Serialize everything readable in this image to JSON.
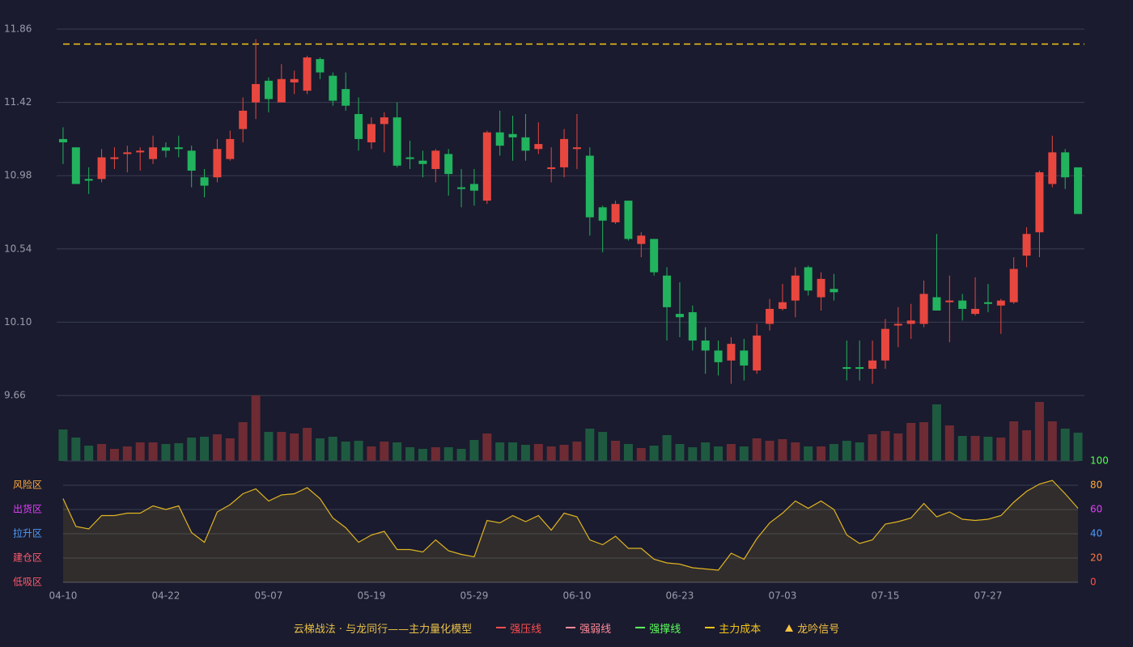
{
  "chart_data": {
    "type": "candlestick",
    "ylim": [
      9.66,
      11.86
    ],
    "yticks": [
      9.66,
      {
        "value": 10.1,
        "label": "10.10"
      },
      10.54,
      10.98,
      11.42,
      11.86
    ],
    "grid": true,
    "categories": [
      "04-10",
      null,
      null,
      null,
      null,
      null,
      null,
      null,
      "04-22",
      null,
      null,
      null,
      null,
      null,
      null,
      null,
      "05-07",
      null,
      null,
      null,
      null,
      null,
      null,
      null,
      "05-19",
      null,
      null,
      null,
      null,
      null,
      null,
      null,
      "05-29",
      null,
      null,
      null,
      null,
      null,
      null,
      null,
      "06-10",
      null,
      null,
      null,
      null,
      null,
      null,
      null,
      "06-23",
      null,
      null,
      null,
      null,
      null,
      null,
      null,
      "07-03",
      null,
      null,
      null,
      null,
      null,
      null,
      null,
      "07-15",
      null,
      null,
      null,
      null,
      null,
      null,
      null,
      "07-27",
      null,
      null,
      null,
      null,
      null,
      null,
      null
    ],
    "open": [
      11.2,
      11.15,
      10.96,
      10.96,
      11.08,
      11.11,
      11.12,
      11.08,
      11.15,
      11.15,
      11.13,
      10.97,
      10.97,
      11.08,
      11.26,
      11.42,
      11.55,
      11.42,
      11.54,
      11.49,
      11.68,
      11.58,
      11.5,
      11.35,
      11.18,
      11.29,
      11.33,
      11.09,
      11.07,
      11.02,
      11.11,
      10.91,
      10.93,
      10.83,
      11.24,
      11.23,
      11.21,
      11.14,
      11.02,
      11.03,
      11.14,
      11.1,
      10.79,
      10.7,
      10.83,
      10.57,
      10.6,
      10.38,
      10.15,
      10.16,
      9.99,
      9.93,
      9.87,
      9.93,
      9.81,
      10.09,
      10.18,
      10.23,
      10.43,
      10.25,
      10.3,
      9.83,
      9.83,
      9.82,
      9.87,
      10.08,
      10.09,
      10.09,
      10.25,
      10.22,
      10.23,
      10.15,
      10.22,
      10.2,
      10.22,
      10.5,
      10.64,
      10.93,
      11.12,
      11.03
    ],
    "close": [
      11.18,
      10.93,
      10.95,
      11.09,
      11.09,
      11.12,
      11.13,
      11.15,
      11.13,
      11.14,
      11.01,
      10.92,
      11.14,
      11.2,
      11.37,
      11.53,
      11.44,
      11.56,
      11.56,
      11.69,
      11.6,
      11.43,
      11.4,
      11.2,
      11.29,
      11.33,
      11.04,
      11.08,
      11.05,
      11.13,
      10.99,
      10.9,
      10.89,
      11.24,
      11.16,
      11.21,
      11.13,
      11.17,
      11.03,
      11.2,
      11.15,
      10.73,
      10.71,
      10.81,
      10.6,
      10.62,
      10.4,
      10.19,
      10.13,
      9.99,
      9.93,
      9.86,
      9.97,
      9.84,
      10.02,
      10.18,
      10.22,
      10.38,
      10.29,
      10.36,
      10.28,
      9.82,
      9.82,
      9.87,
      10.06,
      10.09,
      10.11,
      10.27,
      10.17,
      10.23,
      10.18,
      10.18,
      10.21,
      10.23,
      10.42,
      10.63,
      11.0,
      11.12,
      10.97,
      10.75
    ],
    "high": [
      11.27,
      11.15,
      11.03,
      11.14,
      11.15,
      11.16,
      11.15,
      11.22,
      11.18,
      11.22,
      11.16,
      11.02,
      11.2,
      11.25,
      11.45,
      11.8,
      11.57,
      11.65,
      11.61,
      11.7,
      11.69,
      11.6,
      11.6,
      11.45,
      11.33,
      11.36,
      11.42,
      11.19,
      11.13,
      11.14,
      11.14,
      11.02,
      11.02,
      11.25,
      11.37,
      11.34,
      11.35,
      11.3,
      11.15,
      11.26,
      11.35,
      11.15,
      10.8,
      10.83,
      10.83,
      10.64,
      10.6,
      10.43,
      10.34,
      10.2,
      10.07,
      9.99,
      10.01,
      10.0,
      10.09,
      10.24,
      10.33,
      10.43,
      10.44,
      10.4,
      10.39,
      9.99,
      9.99,
      9.99,
      10.12,
      10.19,
      10.21,
      10.35,
      10.63,
      10.38,
      10.27,
      10.37,
      10.33,
      10.24,
      10.49,
      10.67,
      11.01,
      11.22,
      11.14,
      11.03
    ],
    "low": [
      11.05,
      10.93,
      10.87,
      10.94,
      11.02,
      11.0,
      11.01,
      11.05,
      11.09,
      11.09,
      10.91,
      10.85,
      10.94,
      11.07,
      11.18,
      11.32,
      11.36,
      11.42,
      11.47,
      11.47,
      11.56,
      11.4,
      11.37,
      11.13,
      11.14,
      11.12,
      11.03,
      11.02,
      10.97,
      10.94,
      10.86,
      10.79,
      10.8,
      10.81,
      11.1,
      11.07,
      11.07,
      11.11,
      10.94,
      10.97,
      11.02,
      10.62,
      10.52,
      10.69,
      10.59,
      10.49,
      10.38,
      9.99,
      10.01,
      9.93,
      9.79,
      9.78,
      9.73,
      9.75,
      9.79,
      10.05,
      10.17,
      10.13,
      10.26,
      10.17,
      10.23,
      9.75,
      9.75,
      9.73,
      9.82,
      9.95,
      10.0,
      10.07,
      10.17,
      9.98,
      10.11,
      10.14,
      10.16,
      10.03,
      10.21,
      10.43,
      10.49,
      10.91,
      10.9,
      10.75
    ],
    "volume": [
      39,
      29,
      19,
      21,
      15,
      18,
      23,
      23,
      21,
      22,
      29,
      30,
      33,
      28,
      48,
      81,
      36,
      36,
      34,
      41,
      28,
      30,
      24,
      25,
      18,
      24,
      23,
      17,
      15,
      17,
      17,
      15,
      26,
      34,
      23,
      23,
      20,
      21,
      18,
      20,
      24,
      40,
      36,
      25,
      21,
      16,
      19,
      32,
      21,
      17,
      23,
      18,
      21,
      18,
      28,
      25,
      27,
      23,
      18,
      18,
      21,
      25,
      23,
      33,
      37,
      34,
      47,
      48,
      70,
      44,
      31,
      31,
      30,
      29,
      49,
      38,
      73,
      49,
      40,
      35
    ],
    "up_color": "#e8473f",
    "down_color": "#22b35e",
    "volume_up_color": "#6e2b33",
    "volume_down_color": "#1e5a40",
    "cost_line": {
      "value": 11.77,
      "color": "#f5c518"
    },
    "oscillator": {
      "ylim": [
        0,
        100
      ],
      "yticks": [
        0,
        20,
        40,
        60,
        80,
        100
      ],
      "ytick_colors": [
        "#ff4d4f",
        "#ff7a45",
        "#4d9bff",
        "#e040fb",
        "#ffa940",
        "#52ff52"
      ],
      "values": [
        69,
        46,
        44,
        55,
        55,
        57,
        57,
        63,
        60,
        63,
        41,
        33,
        58,
        64,
        73,
        77,
        67,
        72,
        73,
        78,
        69,
        53,
        45,
        33,
        39,
        42,
        27,
        27,
        25,
        35,
        26,
        23,
        21,
        51,
        49,
        55,
        50,
        55,
        43,
        57,
        54,
        35,
        31,
        38,
        28,
        28,
        19,
        16,
        15,
        12,
        11,
        10,
        24,
        19,
        36,
        49,
        57,
        67,
        61,
        67,
        60,
        39,
        32,
        35,
        48,
        50,
        53,
        65,
        54,
        58,
        52,
        51,
        52,
        55,
        66,
        75,
        81,
        84,
        73,
        61
      ],
      "color": "#e0b422",
      "zones": [
        {
          "label": "风险区",
          "value": 80,
          "color": "#ffa940"
        },
        {
          "label": "出货区",
          "value": 60,
          "color": "#e040fb"
        },
        {
          "label": "拉升区",
          "value": 40,
          "color": "#4d9bff"
        },
        {
          "label": "建仓区",
          "value": 20,
          "color": "#ff5a6e"
        },
        {
          "label": "低吸区",
          "value": 0,
          "color": "#ff5a6e"
        }
      ]
    },
    "legend_title": "云梯战法 · 与龙同行——主力量化模型",
    "legend": [
      {
        "name": "强压线",
        "color": "#ff4d4f",
        "style": "solid"
      },
      {
        "name": "强弱线",
        "color": "#ff8a9a",
        "style": "dashed"
      },
      {
        "name": "强撑线",
        "color": "#5cff5c",
        "style": "solid"
      },
      {
        "name": "主力成本",
        "color": "#f5c518",
        "style": "dashed"
      },
      {
        "name": "龙吟信号",
        "color": "#f5c242",
        "style": "triangle"
      }
    ]
  }
}
